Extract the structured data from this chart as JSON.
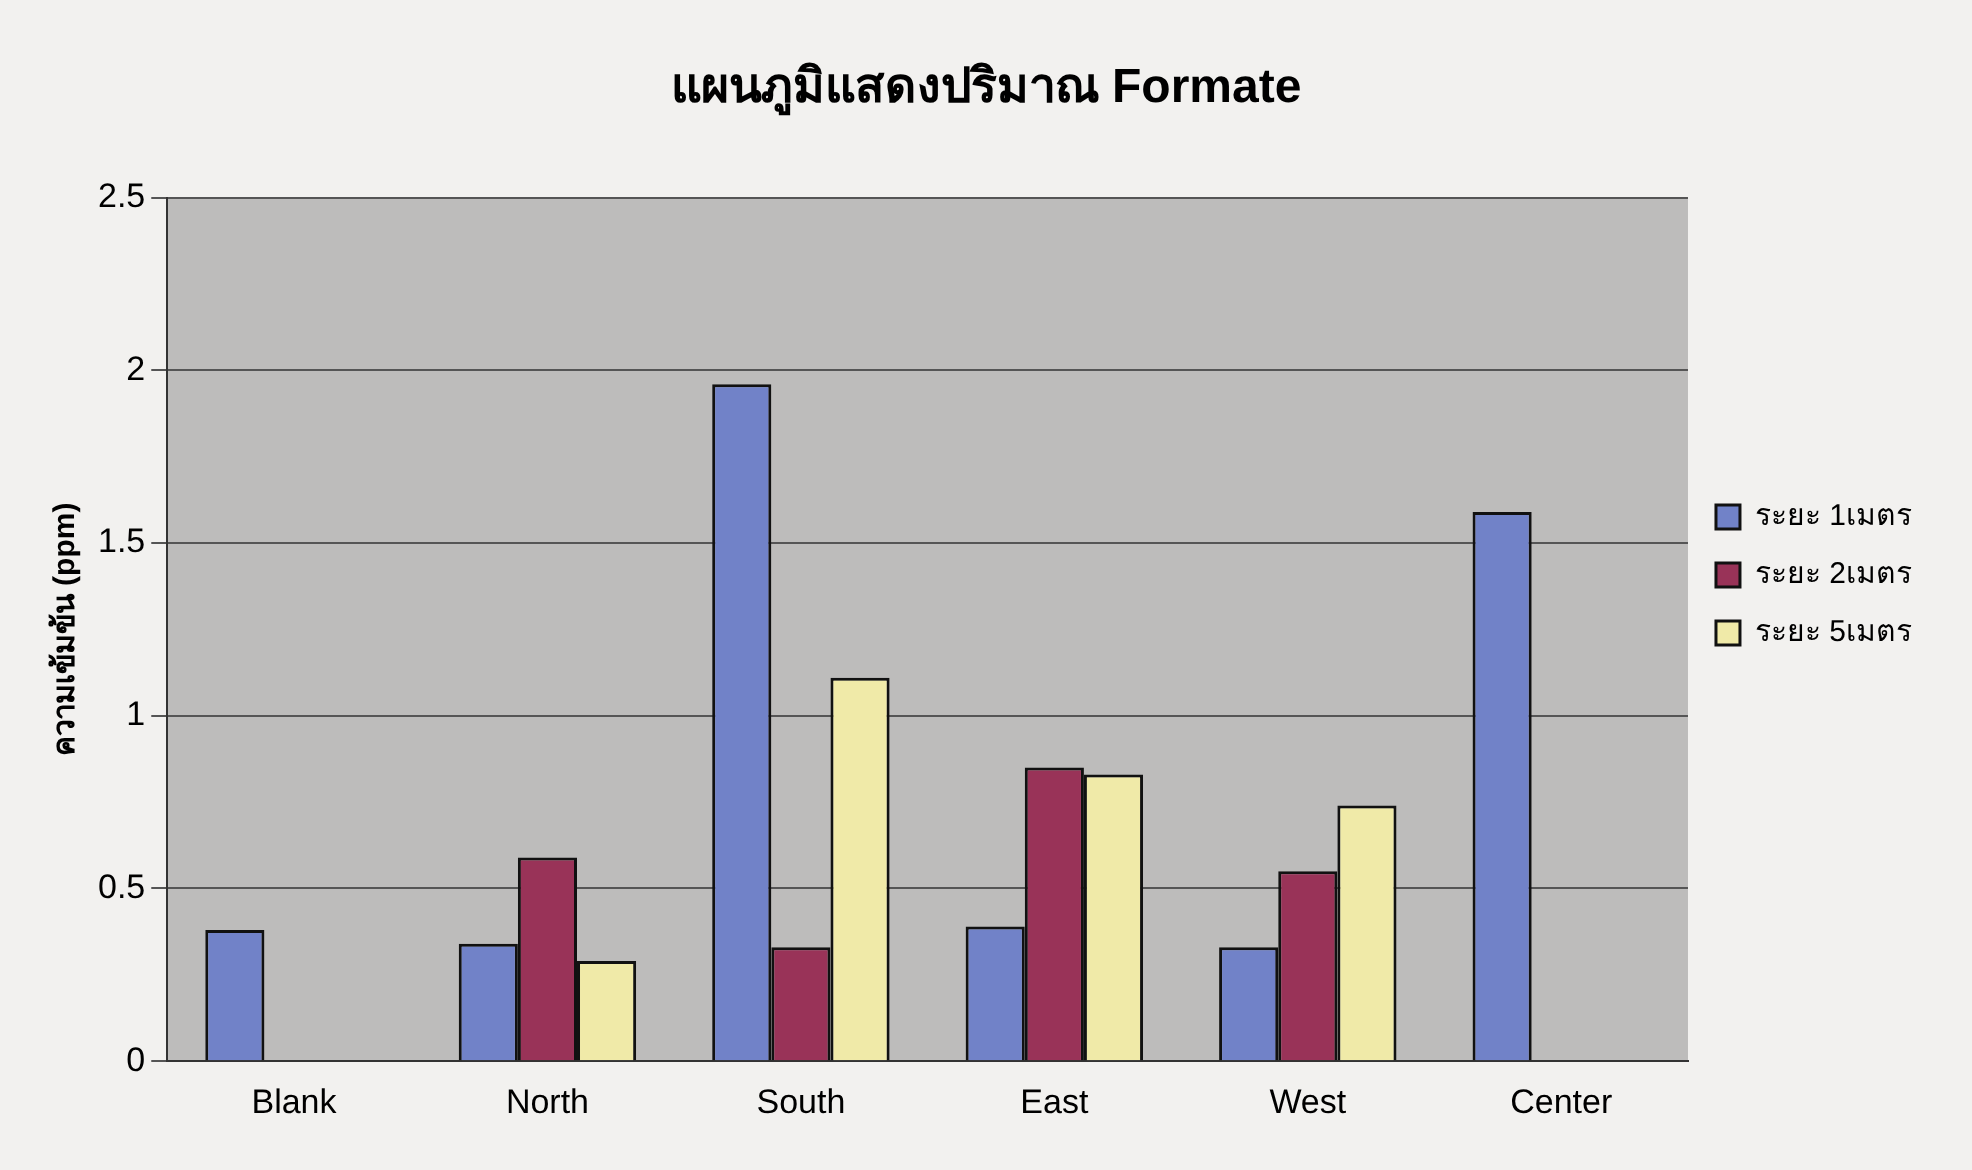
{
  "chart_data": {
    "type": "bar",
    "title": "แผนภูมิแสดงปริมาณ Formate",
    "ylabel": "ความเข้มข้น (ppm)",
    "categories": [
      "Blank",
      "North",
      "South",
      "East",
      "West",
      "Center"
    ],
    "series": [
      {
        "name": "ระยะ 1เมตร",
        "color": "#7182c8",
        "values": [
          0.38,
          0.34,
          1.96,
          0.39,
          0.33,
          1.59
        ]
      },
      {
        "name": "ระยะ 2เมตร",
        "color": "#993358",
        "values": [
          null,
          0.59,
          0.33,
          0.85,
          0.55,
          null
        ]
      },
      {
        "name": "ระยะ 5เมตร",
        "color": "#f0eaa8",
        "values": [
          null,
          0.29,
          1.11,
          0.83,
          0.74,
          null
        ]
      }
    ],
    "ylim": [
      0,
      2.5
    ],
    "yticks": [
      0,
      0.5,
      1,
      1.5,
      2,
      2.5
    ],
    "grid": "y",
    "legend": "right"
  }
}
